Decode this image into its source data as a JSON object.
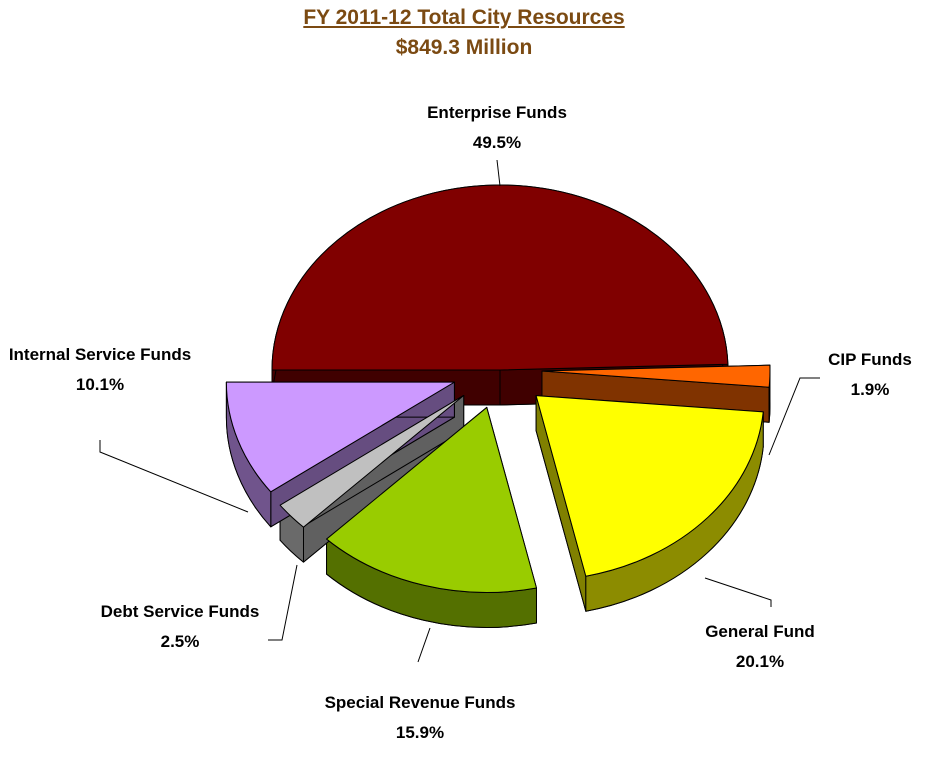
{
  "chart_data": {
    "type": "pie",
    "title": "FY 2011-12 Total City Resources",
    "subtitle": "$849.3 Million",
    "categories": [
      "Enterprise Funds",
      "CIP Funds",
      "General Fund",
      "Special Revenue Funds",
      "Debt Service Funds",
      "Internal Service Funds"
    ],
    "values": [
      49.5,
      1.9,
      20.1,
      15.9,
      2.5,
      10.1
    ],
    "value_labels": [
      "49.5%",
      "1.9%",
      "20.1%",
      "15.9%",
      "2.5%",
      "10.1%"
    ],
    "colors": [
      "#800000",
      "#ff6600",
      "#ffff00",
      "#99cc00",
      "#c0c0c0",
      "#cc99ff"
    ]
  }
}
